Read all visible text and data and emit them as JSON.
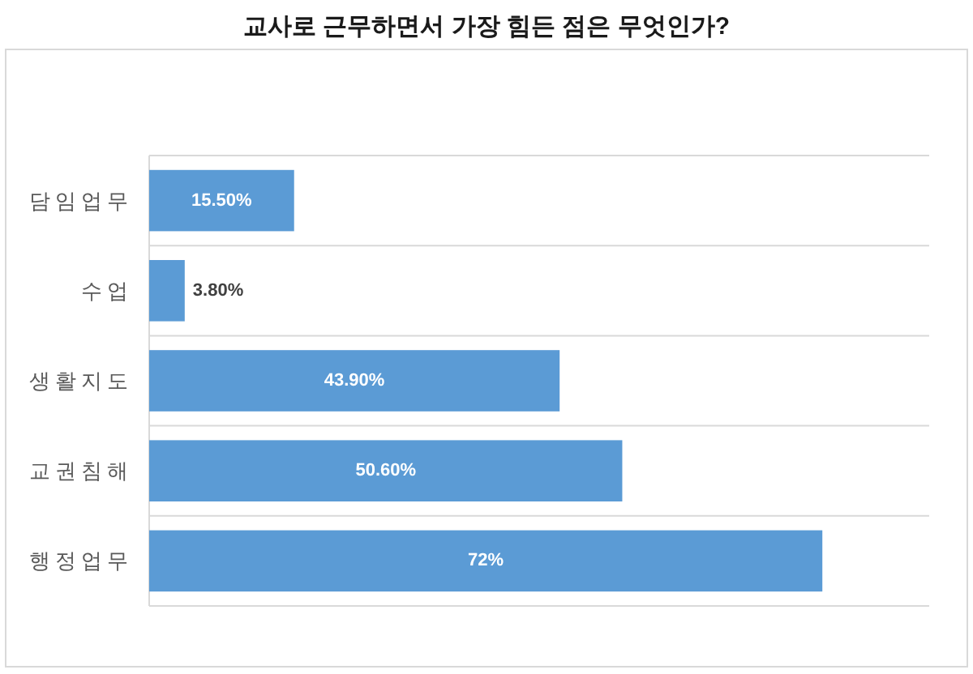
{
  "chart_data": {
    "type": "bar",
    "orientation": "horizontal",
    "title": "교사로 근무하면서 가장 힘든 점은 무엇인가?",
    "categories": [
      "담임업무",
      "수업",
      "생활지도",
      "교권침해",
      "행정업무"
    ],
    "values": [
      15.5,
      3.8,
      43.9,
      50.6,
      72
    ],
    "value_labels": [
      "15.50%",
      "3.80%",
      "43.90%",
      "50.60%",
      "72%"
    ],
    "color": "#5b9bd5",
    "grid": "y"
  }
}
